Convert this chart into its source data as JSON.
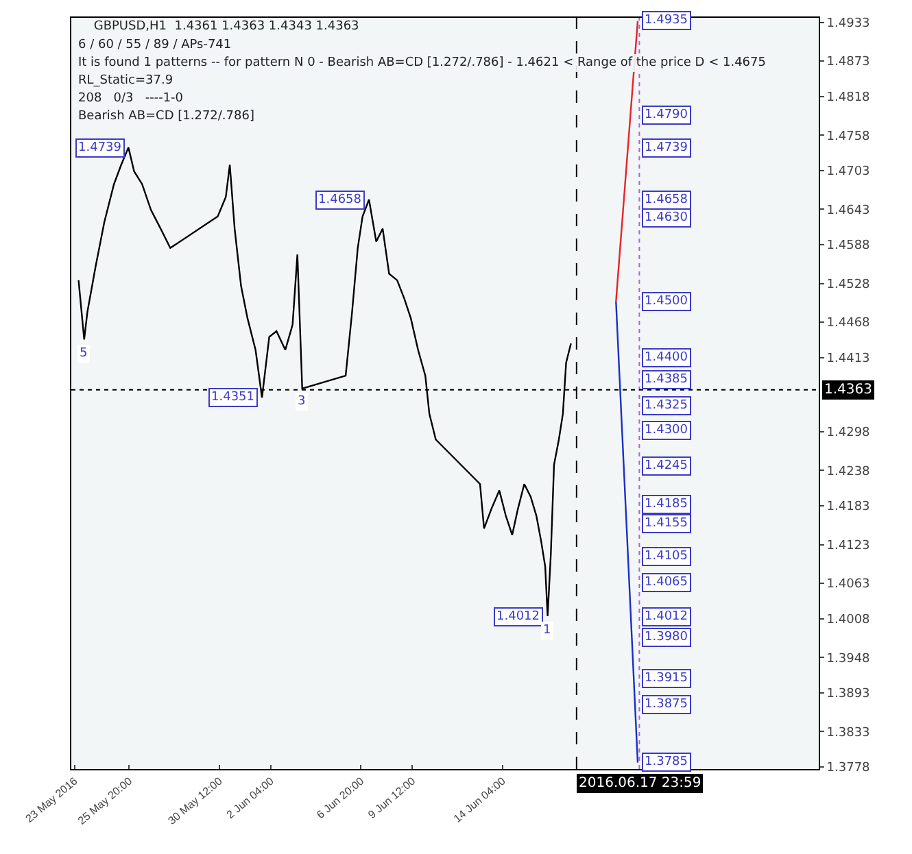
{
  "chart_data": {
    "type": "line",
    "title": "GBPUSD,H1  1.4361 1.4363 1.4343 1.4363",
    "x": [
      "2016-05-23T05:00",
      "2016-05-23T12:00",
      "2016-05-23T16:00",
      "2016-05-24T02:00",
      "2016-05-24T13:00",
      "2016-05-25T01:00",
      "2016-05-25T10:00",
      "2016-05-25T19:00",
      "2016-05-26T02:00",
      "2016-05-26T12:00",
      "2016-05-26T23:00",
      "2016-05-27T11:00",
      "2016-05-27T23:00",
      "2016-05-30T10:00",
      "2016-05-30T20:00",
      "2016-05-31T01:00",
      "2016-05-31T07:00",
      "2016-05-31T15:00",
      "2016-05-31T23:00",
      "2016-06-01T09:00",
      "2016-06-01T17:00",
      "2016-06-02T02:00",
      "2016-06-02T11:00",
      "2016-06-02T22:00",
      "2016-06-03T07:00",
      "2016-06-03T13:00",
      "2016-06-03T19:00",
      "2016-06-06T01:00",
      "2016-06-06T09:00",
      "2016-06-06T16:00",
      "2016-06-06T22:00",
      "2016-06-07T06:00",
      "2016-06-07T15:00",
      "2016-06-07T23:00",
      "2016-06-08T07:00",
      "2016-06-08T17:00",
      "2016-06-09T02:00",
      "2016-06-09T10:00",
      "2016-06-09T19:00",
      "2016-06-10T04:00",
      "2016-06-10T09:00",
      "2016-06-10T17:00",
      "2016-06-13T00:00",
      "2016-06-13T05:00",
      "2016-06-13T14:00",
      "2016-06-14T00:00",
      "2016-06-14T08:00",
      "2016-06-14T16:00",
      "2016-06-14T23:00",
      "2016-06-15T07:00",
      "2016-06-15T15:00",
      "2016-06-15T22:00",
      "2016-06-16T04:00",
      "2016-06-16T09:00",
      "2016-06-16T12:00",
      "2016-06-16T16:00",
      "2016-06-16T20:00",
      "2016-06-17T02:00",
      "2016-06-17T07:00",
      "2016-06-17T11:00",
      "2016-06-17T17:00"
    ],
    "series": [
      {
        "color": "#000000",
        "values": [
          1.4533,
          1.4441,
          1.4484,
          1.4553,
          1.4623,
          1.4682,
          1.4712,
          1.4739,
          1.4702,
          1.4682,
          1.4642,
          1.4613,
          1.4583,
          1.4632,
          1.4662,
          1.4712,
          1.4613,
          1.4524,
          1.4474,
          1.4425,
          1.4351,
          1.4445,
          1.4454,
          1.4425,
          1.4464,
          1.4573,
          1.4365,
          1.4385,
          1.4484,
          1.4583,
          1.4632,
          1.4658,
          1.4593,
          1.4613,
          1.4543,
          1.4533,
          1.4504,
          1.4474,
          1.4425,
          1.4385,
          1.4326,
          1.4286,
          1.4217,
          1.4148,
          1.4178,
          1.4207,
          1.4168,
          1.4138,
          1.4178,
          1.4217,
          1.4197,
          1.4168,
          1.4128,
          1.4089,
          1.4012,
          1.4108,
          1.4247,
          1.4286,
          1.4326,
          1.4405,
          1.4435
        ]
      },
      {
        "color": "#e8222a",
        "x": [
          "2016-06-20T01:00",
          "2016-06-21T04:00"
        ],
        "values": [
          1.45,
          1.4935
        ]
      },
      {
        "color": "#1a2fc4",
        "x": [
          "2016-06-20T01:00",
          "2016-06-21T04:00"
        ],
        "values": [
          1.45,
          1.3785
        ]
      }
    ],
    "xlim": [
      "2016-05-22T20:00",
      "2016-06-30T13:00"
    ],
    "ylim": [
      1.3775,
      1.494
    ],
    "xticks": [
      {
        "value": "2016-05-23T00:00",
        "label": "23 May 2016"
      },
      {
        "value": "2016-05-25T20:00",
        "label": "25 May 20:00"
      },
      {
        "value": "2016-05-30T12:00",
        "label": "30 May 12:00"
      },
      {
        "value": "2016-06-02T04:00",
        "label": "2 Jun 04:00"
      },
      {
        "value": "2016-06-06T20:00",
        "label": "6 Jun 20:00"
      },
      {
        "value": "2016-06-09T12:00",
        "label": "9 Jun 12:00"
      },
      {
        "value": "2016-06-14T04:00",
        "label": "14 Jun 04:00"
      }
    ],
    "yticks": [
      1.4933,
      1.4873,
      1.4818,
      1.4758,
      1.4703,
      1.4643,
      1.4588,
      1.4528,
      1.4468,
      1.4413,
      1.4298,
      1.4238,
      1.4183,
      1.4123,
      1.4063,
      1.4008,
      1.3948,
      1.3893,
      1.3833,
      1.3778
    ],
    "ref_lines": [
      {
        "axis": "x",
        "value": "2016-06-17T23:59",
        "label": "2016.06.17 23:59",
        "color": "#000000",
        "line_style": "dashed"
      },
      {
        "axis": "x",
        "value": "2016-06-21T06:00",
        "color": "#b060e0",
        "line_style": "dotted"
      },
      {
        "axis": "y",
        "value": 1.4363,
        "label": "1.4363",
        "color": "#000000",
        "line_style": "dotted"
      }
    ],
    "annotations": [
      "6 / 60 / 55 / 89 / APs-741",
      "It is found 1 patterns -- for pattern N 0 - Bearish AB=CD [1.272/.786] - 1.4621 < Range of the price D < 1.4675",
      "RL_Static=37.9",
      "208   0/3   ----1-0",
      "Bearish AB=CD [1.272/.786]",
      {
        "text": "1.4739",
        "x": "2016-05-25T19:00",
        "y": 1.4739
      },
      {
        "text": "1.4658",
        "x": "2016-06-07T06:00",
        "y": 1.4658
      },
      {
        "text": "1.4351",
        "x": "2016-06-01T17:00",
        "y": 1.4351
      },
      {
        "text": "1.4012",
        "x": "2016-06-16T12:00",
        "y": 1.4012
      },
      {
        "text": "5",
        "x": "2016-05-23T12:00",
        "y": 1.4441
      },
      {
        "text": "3",
        "x": "2016-06-03T19:00",
        "y": 1.4365
      },
      {
        "text": "1",
        "x": "2016-06-16T12:00",
        "y": 1.4012
      },
      {
        "text": "1.4935",
        "x": "2016-06-21T04:00",
        "y": 1.4935
      },
      {
        "text": "1.4790",
        "x": "2016-06-21T04:00",
        "y": 1.479
      },
      {
        "text": "1.4739",
        "x": "2016-06-21T04:00",
        "y": 1.4739
      },
      {
        "text": "1.4658",
        "x": "2016-06-21T04:00",
        "y": 1.4658
      },
      {
        "text": "1.4630",
        "x": "2016-06-21T04:00",
        "y": 1.463
      },
      {
        "text": "1.4500",
        "x": "2016-06-21T04:00",
        "y": 1.45
      },
      {
        "text": "1.4400",
        "x": "2016-06-21T04:00",
        "y": 1.44
      },
      {
        "text": "1.4385",
        "x": "2016-06-21T04:00",
        "y": 1.4385
      },
      {
        "text": "1.4325",
        "x": "2016-06-21T04:00",
        "y": 1.4325
      },
      {
        "text": "1.4300",
        "x": "2016-06-21T04:00",
        "y": 1.43
      },
      {
        "text": "1.4245",
        "x": "2016-06-21T04:00",
        "y": 1.4245
      },
      {
        "text": "1.4185",
        "x": "2016-06-21T04:00",
        "y": 1.4185
      },
      {
        "text": "1.4155",
        "x": "2016-06-21T04:00",
        "y": 1.4155
      },
      {
        "text": "1.4105",
        "x": "2016-06-21T04:00",
        "y": 1.4105
      },
      {
        "text": "1.4065",
        "x": "2016-06-21T04:00",
        "y": 1.4065
      },
      {
        "text": "1.4012",
        "x": "2016-06-21T04:00",
        "y": 1.4012
      },
      {
        "text": "1.3980",
        "x": "2016-06-21T04:00",
        "y": 1.398
      },
      {
        "text": "1.3915",
        "x": "2016-06-21T04:00",
        "y": 1.3915
      },
      {
        "text": "1.3875",
        "x": "2016-06-21T04:00",
        "y": 1.3875
      },
      {
        "text": "1.3785",
        "x": "2016-06-21T04:00",
        "y": 1.3785
      }
    ]
  }
}
